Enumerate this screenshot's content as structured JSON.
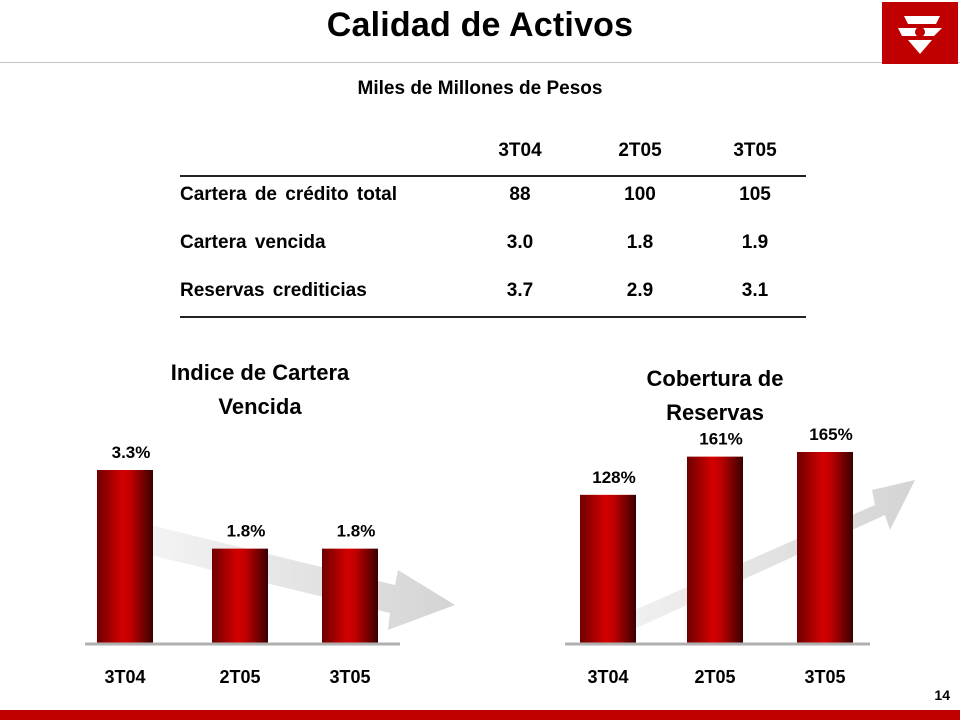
{
  "slide": {
    "title": "Calidad de Activos",
    "subtitle": "Miles de Millones de Pesos",
    "page_number": "14",
    "brand_color": "#c00000",
    "logo_icon": "bank-logo-icon"
  },
  "table": {
    "headers": [
      "3T04",
      "2T05",
      "3T05"
    ],
    "rows": [
      {
        "label": "Cartera de crédito total",
        "values": [
          "88",
          "100",
          "105"
        ]
      },
      {
        "label": "Cartera vencida",
        "values": [
          "3.0",
          "1.8",
          "1.9"
        ]
      },
      {
        "label": "Reservas crediticias",
        "values": [
          "3.7",
          "2.9",
          "3.1"
        ]
      }
    ]
  },
  "chart_data": [
    {
      "type": "bar",
      "title_lines": [
        "Indice de Cartera",
        "Vencida"
      ],
      "categories": [
        "3T04",
        "2T05",
        "3T05"
      ],
      "values": [
        3.3,
        1.8,
        1.8
      ],
      "data_labels": [
        "3.3%",
        "1.8%",
        "1.8%"
      ],
      "unit": "%",
      "trend": "down",
      "bar_color": "#c00000"
    },
    {
      "type": "bar",
      "title_lines": [
        "Cobertura de",
        "Reservas"
      ],
      "categories": [
        "3T04",
        "2T05",
        "3T05"
      ],
      "values": [
        128,
        161,
        165
      ],
      "data_labels": [
        "128%",
        "161%",
        "165%"
      ],
      "unit": "%",
      "trend": "up",
      "bar_color": "#c00000"
    }
  ]
}
